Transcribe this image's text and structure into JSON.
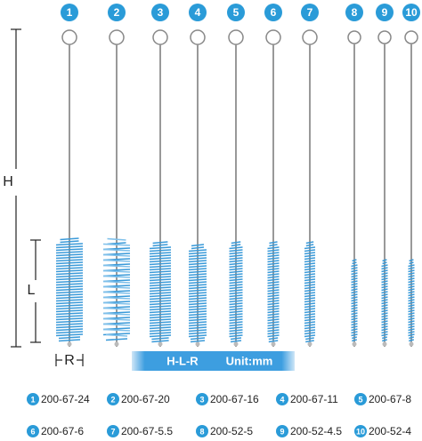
{
  "badges": [
    "1",
    "2",
    "3",
    "4",
    "5",
    "6",
    "7",
    "8",
    "9",
    "10"
  ],
  "dimensions": {
    "height": "H",
    "length": "L",
    "diameter": "R"
  },
  "banner": {
    "formula": "H-L-R",
    "unit": "Unit:mm"
  },
  "specs": [
    {
      "number": "1",
      "code": "200-67-24"
    },
    {
      "number": "2",
      "code": "200-67-20"
    },
    {
      "number": "3",
      "code": "200-67-16"
    },
    {
      "number": "4",
      "code": "200-67-11"
    },
    {
      "number": "5",
      "code": "200-67-8"
    },
    {
      "number": "6",
      "code": "200-67-6"
    },
    {
      "number": "7",
      "code": "200-67-5.5"
    },
    {
      "number": "8",
      "code": "200-52-5"
    },
    {
      "number": "9",
      "code": "200-52-4.5"
    },
    {
      "number": "10",
      "code": "200-52-4"
    }
  ]
}
